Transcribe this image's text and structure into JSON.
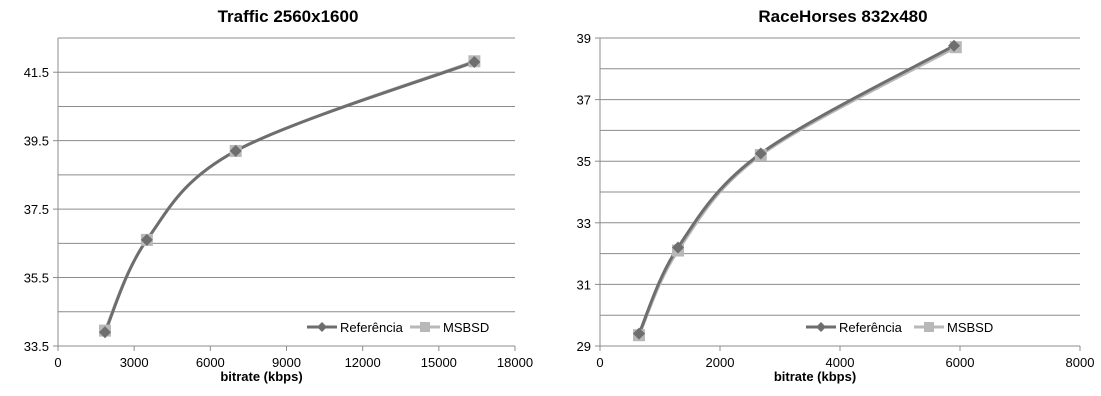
{
  "chart_data": [
    {
      "type": "line",
      "title": "Traffic 2560x1600",
      "xlabel": "bitrate (kbps)",
      "ylabel": "",
      "xlim": [
        0,
        18000
      ],
      "ylim": [
        33.5,
        42.5
      ],
      "x_ticks": [
        0,
        3000,
        6000,
        9000,
        12000,
        15000,
        18000
      ],
      "x_tick_labels": [
        "0",
        "3000",
        "6000",
        "9000",
        "12000",
        "15000",
        "18000"
      ],
      "y_ticks": [
        33.5,
        35.5,
        37.5,
        39.5,
        41.5
      ],
      "y_tick_labels": [
        "33.5",
        "35.5",
        "37.5",
        "39.5",
        "41.5"
      ],
      "grid_y": [
        34.5,
        35.5,
        36.5,
        37.5,
        38.5,
        39.5,
        40.5,
        41.5,
        42.5
      ],
      "legend": "bottom-right",
      "series": [
        {
          "name": "Referência",
          "color": "#6e6e6e",
          "marker": "diamond",
          "x": [
            1850,
            3500,
            7000,
            16400
          ],
          "y": [
            33.9,
            36.6,
            39.2,
            41.8
          ]
        },
        {
          "name": "MSBSD",
          "color": "#b8b8b8",
          "marker": "square",
          "x": [
            1850,
            3500,
            7000,
            16400
          ],
          "y": [
            33.95,
            36.6,
            39.2,
            41.82
          ]
        }
      ]
    },
    {
      "type": "line",
      "title": "RaceHorses 832x480",
      "xlabel": "bitrate (kbps)",
      "ylabel": "",
      "xlim": [
        0,
        8000
      ],
      "ylim": [
        29,
        39
      ],
      "x_ticks": [
        0,
        2000,
        4000,
        6000,
        8000
      ],
      "x_tick_labels": [
        "0",
        "2000",
        "4000",
        "6000",
        "8000"
      ],
      "y_ticks": [
        29,
        31,
        33,
        35,
        37,
        39
      ],
      "y_tick_labels": [
        "29",
        "31",
        "33",
        "35",
        "37",
        "39"
      ],
      "grid_y": [
        30,
        31,
        32,
        33,
        34,
        35,
        36,
        37,
        38,
        39
      ],
      "legend": "bottom-right",
      "series": [
        {
          "name": "Referência",
          "color": "#6e6e6e",
          "marker": "diamond",
          "x": [
            650,
            1300,
            2680,
            5900
          ],
          "y": [
            29.4,
            32.2,
            35.25,
            38.75
          ]
        },
        {
          "name": "MSBSD",
          "color": "#b8b8b8",
          "marker": "square",
          "x": [
            650,
            1300,
            2680,
            5930
          ],
          "y": [
            29.35,
            32.1,
            35.2,
            38.7
          ]
        }
      ]
    }
  ]
}
